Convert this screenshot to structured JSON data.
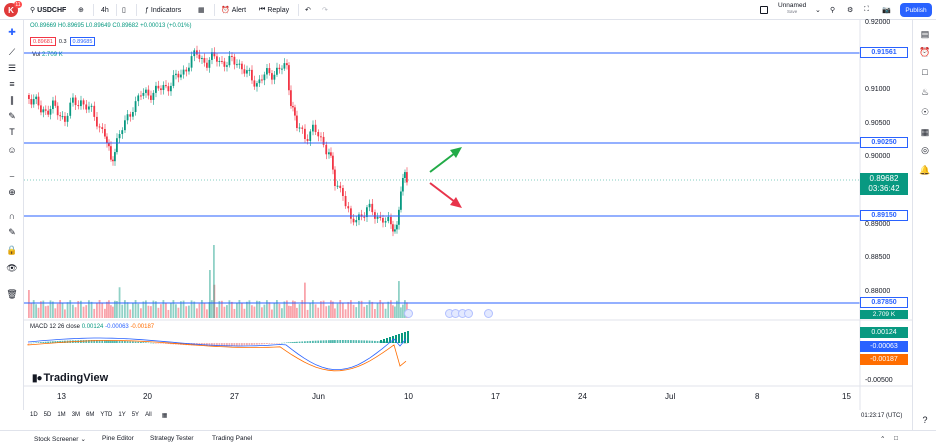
{
  "topbar": {
    "logo_letter": "K",
    "logo_badge": "11",
    "symbol": "USDCHF",
    "interval": "4h",
    "indicators_label": "Indicators",
    "alert_label": "Alert",
    "replay_label": "Replay",
    "layout_name": "Unnamed",
    "layout_status": "Save",
    "publish_label": "Publish"
  },
  "legend": {
    "ohlc": "O0.89669 H0.89695 L0.89649 C0.89682 +0.00013 (+0.01%)",
    "bid": "0.89681",
    "spread": "0.3",
    "ask": "0.89685",
    "vol_label": "Vol",
    "vol_value": "2.709 K"
  },
  "macd": {
    "label": "MACD 12 26 close",
    "v1": "0.00124",
    "v2": "-0.00063",
    "v3": "-0.00187"
  },
  "price_axis": [
    "0.92000",
    "0.91000",
    "0.90500",
    "0.90000",
    "0.89000",
    "0.88500",
    "0.88000"
  ],
  "macd_axis": [
    "-0.00500"
  ],
  "hlines": [
    {
      "label": "0.91561",
      "color": "#2962ff"
    },
    {
      "label": "0.90250",
      "color": "#2962ff"
    },
    {
      "label": "0.89150",
      "color": "#2962ff"
    },
    {
      "label": "0.87850",
      "color": "#2962ff"
    }
  ],
  "current_price": {
    "value": "0.89682",
    "countdown": "03:36:42",
    "color": "#089981"
  },
  "volume_tag": "2.709 K",
  "macd_tags": [
    {
      "value": "0.00124",
      "color": "#089981"
    },
    {
      "value": "-0.00063",
      "color": "#2962ff"
    },
    {
      "value": "-0.00187",
      "color": "#ff6d00"
    }
  ],
  "x_axis": [
    "13",
    "20",
    "27",
    "Jun",
    "10",
    "17",
    "24",
    "Jul",
    "8",
    "15"
  ],
  "timeframes": [
    "1D",
    "5D",
    "1M",
    "3M",
    "6M",
    "YTD",
    "1Y",
    "5Y",
    "All"
  ],
  "clock": "01:23:17 (UTC)",
  "brand": "TradingView",
  "bottombar": {
    "items": [
      "Stock Screener",
      "Pine Editor",
      "Strategy Tester",
      "Trading Panel"
    ]
  },
  "colors": {
    "up": "#089981",
    "down": "#f23645",
    "line": "#2962ff",
    "arrow_up": "#22ab47",
    "arrow_down": "#e8344b"
  }
}
